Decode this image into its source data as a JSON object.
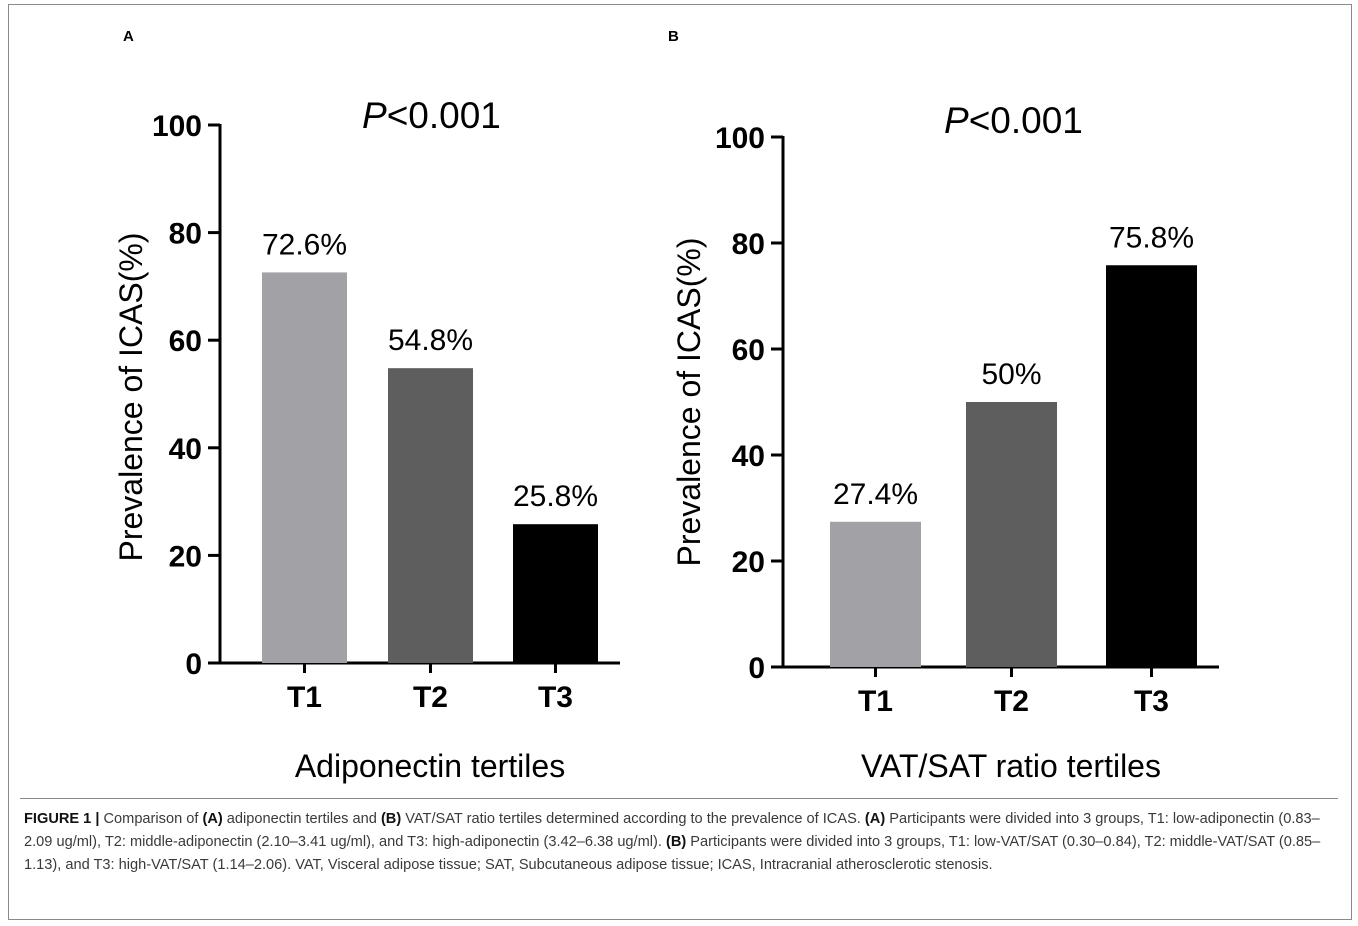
{
  "panels": [
    {
      "letter": "A",
      "pvalue_label": "P",
      "pvalue_text": "<0.001"
    },
    {
      "letter": "B",
      "pvalue_label": "P",
      "pvalue_text": "<0.001"
    }
  ],
  "chart_data": [
    {
      "type": "bar",
      "categories": [
        "T1",
        "T2",
        "T3"
      ],
      "values": [
        72.6,
        54.8,
        25.8
      ],
      "value_labels": [
        "72.6%",
        "54.8%",
        "25.8%"
      ],
      "colors": [
        "#a2a2a6",
        "#5e5e5e",
        "#000000"
      ],
      "xlabel": "Adiponectin tertiles",
      "ylabel": "Prevalence of ICAS(%)",
      "ylim": [
        0,
        100
      ],
      "yticks": [
        0,
        20,
        40,
        60,
        80,
        100
      ],
      "grid": false
    },
    {
      "type": "bar",
      "categories": [
        "T1",
        "T2",
        "T3"
      ],
      "values": [
        27.4,
        50,
        75.8
      ],
      "value_labels": [
        "27.4%",
        "50%",
        "75.8%"
      ],
      "colors": [
        "#a2a2a6",
        "#5e5e5e",
        "#000000"
      ],
      "xlabel": "VAT/SAT ratio tertiles",
      "ylabel": "Prevalence of ICAS(%)",
      "ylim": [
        0,
        100
      ],
      "yticks": [
        0,
        20,
        40,
        60,
        80,
        100
      ],
      "grid": false
    }
  ],
  "caption": {
    "label": "FIGURE 1 |",
    "t1": " Comparison of ",
    "b1": "(A)",
    "t2": " adiponectin tertiles and ",
    "b2": "(B)",
    "t3": " VAT/SAT ratio tertiles determined according to the prevalence of ICAS. ",
    "b3": "(A)",
    "t4": " Participants were divided into 3 groups, T1: low-adiponectin (0.83–2.09 ug/ml), T2: middle-adiponectin (2.10–3.41 ug/ml), and T3: high-adiponectin (3.42–6.38 ug/ml). ",
    "b4": "(B)",
    "t5": " Participants were divided into 3 groups, T1: low-VAT/SAT (0.30–0.84), T2: middle-VAT/SAT (0.85–1.13), and T3: high-VAT/SAT (1.14–2.06). VAT, Visceral adipose tissue; SAT, Subcutaneous adipose tissue; ICAS, Intracranial atherosclerotic stenosis."
  }
}
